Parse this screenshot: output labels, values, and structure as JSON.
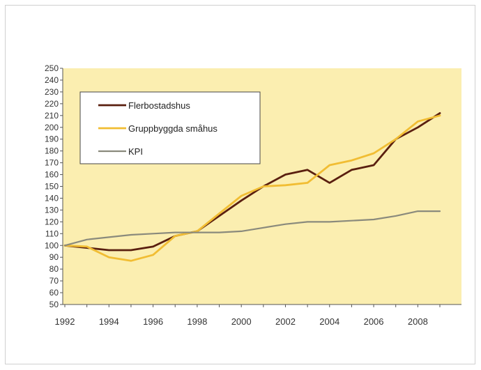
{
  "chart_data": {
    "type": "line",
    "x": [
      1992,
      1993,
      1994,
      1995,
      1996,
      1997,
      1998,
      1999,
      2000,
      2001,
      2002,
      2003,
      2004,
      2005,
      2006,
      2007,
      2008,
      2009
    ],
    "xticks": [
      "1992",
      "1994",
      "1996",
      "1998",
      "2000",
      "2002",
      "2004",
      "2006",
      "2008"
    ],
    "ylim": [
      50,
      250
    ],
    "ystep": 10,
    "grid": false,
    "legend_position": "top-left",
    "plot_background": "#fbeeb0",
    "series": [
      {
        "name": "Flerbostadshus",
        "color": "#5a1f0f",
        "values": [
          100,
          98,
          96,
          96,
          99,
          108,
          112,
          125,
          138,
          150,
          160,
          164,
          153,
          164,
          168,
          190,
          200,
          212
        ]
      },
      {
        "name": "Gruppbyggda småhus",
        "color": "#f1bd33",
        "values": [
          100,
          99,
          90,
          87,
          92,
          108,
          112,
          127,
          142,
          150,
          151,
          153,
          168,
          172,
          178,
          190,
          205,
          210
        ]
      },
      {
        "name": "KPI",
        "color": "#8a8a7c",
        "values": [
          100,
          105,
          107,
          109,
          110,
          111,
          111,
          111,
          112,
          115,
          118,
          120,
          120,
          121,
          122,
          125,
          129,
          129
        ]
      }
    ]
  }
}
